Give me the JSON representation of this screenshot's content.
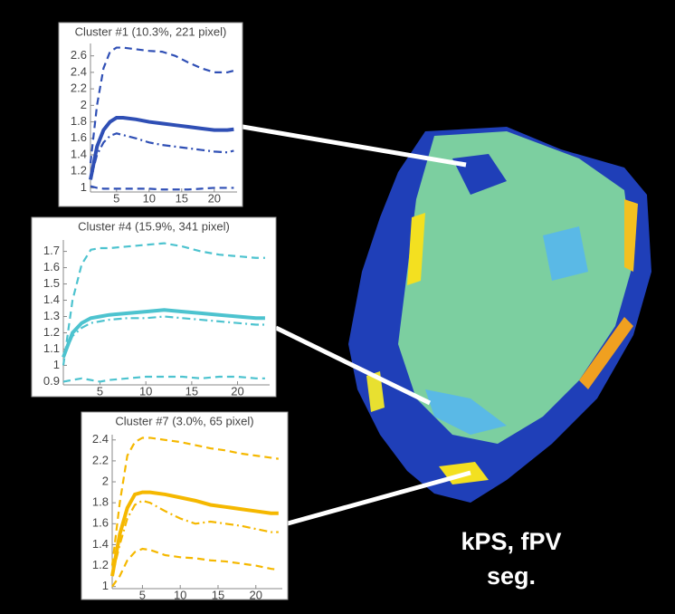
{
  "chart_data": [
    {
      "type": "line",
      "title": "Cluster #1 (10.3%, 221 pixel)",
      "color": "#2f4fb5",
      "x": [
        1,
        2,
        3,
        4,
        5,
        6,
        8,
        10,
        12,
        14,
        16,
        18,
        20,
        22,
        23
      ],
      "xlim": [
        1,
        23.5
      ],
      "xticks": [
        5,
        10,
        15,
        20
      ],
      "ylim": [
        0.95,
        2.75
      ],
      "yticks": [
        1,
        1.2,
        1.4,
        1.6,
        1.8,
        2,
        2.2,
        2.4,
        2.6
      ],
      "series": [
        {
          "dash": "dashed",
          "values": [
            1.3,
            2.0,
            2.45,
            2.65,
            2.7,
            2.7,
            2.68,
            2.66,
            2.65,
            2.6,
            2.52,
            2.45,
            2.4,
            2.4,
            2.42
          ]
        },
        {
          "dash": "solid",
          "values": [
            1.1,
            1.5,
            1.7,
            1.8,
            1.85,
            1.85,
            1.83,
            1.8,
            1.78,
            1.76,
            1.74,
            1.72,
            1.7,
            1.7,
            1.71
          ]
        },
        {
          "dash": "dashdot",
          "values": [
            1.1,
            1.4,
            1.55,
            1.63,
            1.66,
            1.64,
            1.6,
            1.55,
            1.52,
            1.5,
            1.48,
            1.46,
            1.44,
            1.43,
            1.45
          ]
        },
        {
          "dash": "dashed",
          "values": [
            1.02,
            1.0,
            0.99,
            0.99,
            0.99,
            0.99,
            0.99,
            0.99,
            0.98,
            0.98,
            0.98,
            0.99,
            1.0,
            1.0,
            1.0
          ]
        }
      ]
    },
    {
      "type": "line",
      "title": "Cluster #4 (15.9%, 341 pixel)",
      "color": "#4dc3cf",
      "x": [
        1,
        2,
        3,
        4,
        5,
        6,
        8,
        10,
        12,
        14,
        16,
        18,
        20,
        22,
        23
      ],
      "xlim": [
        1,
        23.5
      ],
      "xticks": [
        5,
        10,
        15,
        20
      ],
      "ylim": [
        0.88,
        1.77
      ],
      "yticks": [
        0.9,
        1,
        1.1,
        1.2,
        1.3,
        1.4,
        1.5,
        1.6,
        1.7
      ],
      "series": [
        {
          "dash": "dashed",
          "values": [
            1.0,
            1.4,
            1.62,
            1.71,
            1.72,
            1.72,
            1.73,
            1.74,
            1.75,
            1.73,
            1.7,
            1.68,
            1.67,
            1.66,
            1.66
          ]
        },
        {
          "dash": "solid",
          "values": [
            1.05,
            1.2,
            1.26,
            1.29,
            1.3,
            1.31,
            1.32,
            1.33,
            1.34,
            1.33,
            1.32,
            1.31,
            1.3,
            1.29,
            1.29
          ]
        },
        {
          "dash": "dashdot",
          "values": [
            1.05,
            1.18,
            1.23,
            1.26,
            1.27,
            1.28,
            1.29,
            1.29,
            1.3,
            1.29,
            1.28,
            1.27,
            1.26,
            1.25,
            1.25
          ]
        },
        {
          "dash": "dashed",
          "values": [
            0.9,
            0.91,
            0.92,
            0.91,
            0.9,
            0.91,
            0.92,
            0.93,
            0.93,
            0.93,
            0.92,
            0.93,
            0.93,
            0.92,
            0.92
          ]
        }
      ]
    },
    {
      "type": "line",
      "title": "Cluster #7 (3.0%, 65 pixel)",
      "color": "#f5b800",
      "x": [
        1,
        2,
        3,
        4,
        5,
        6,
        8,
        10,
        12,
        14,
        16,
        18,
        20,
        22,
        23
      ],
      "xlim": [
        1,
        23.5
      ],
      "xticks": [
        5,
        10,
        15,
        20
      ],
      "ylim": [
        0.98,
        2.45
      ],
      "yticks": [
        1,
        1.2,
        1.4,
        1.6,
        1.8,
        2,
        2.2,
        2.4
      ],
      "series": [
        {
          "dash": "dashed",
          "values": [
            1.2,
            1.8,
            2.25,
            2.38,
            2.42,
            2.42,
            2.4,
            2.38,
            2.35,
            2.32,
            2.3,
            2.27,
            2.25,
            2.23,
            2.22
          ]
        },
        {
          "dash": "solid",
          "values": [
            1.1,
            1.5,
            1.75,
            1.88,
            1.9,
            1.9,
            1.88,
            1.85,
            1.82,
            1.78,
            1.76,
            1.74,
            1.72,
            1.7,
            1.7
          ]
        },
        {
          "dash": "dashdot",
          "values": [
            1.1,
            1.4,
            1.65,
            1.78,
            1.82,
            1.8,
            1.72,
            1.65,
            1.6,
            1.62,
            1.6,
            1.58,
            1.55,
            1.52,
            1.52
          ]
        },
        {
          "dash": "dashed",
          "values": [
            1.0,
            1.1,
            1.25,
            1.33,
            1.36,
            1.35,
            1.3,
            1.28,
            1.27,
            1.25,
            1.24,
            1.22,
            1.2,
            1.17,
            1.16
          ]
        }
      ]
    }
  ],
  "label_lines": [
    "kPS, fPV",
    "seg."
  ]
}
